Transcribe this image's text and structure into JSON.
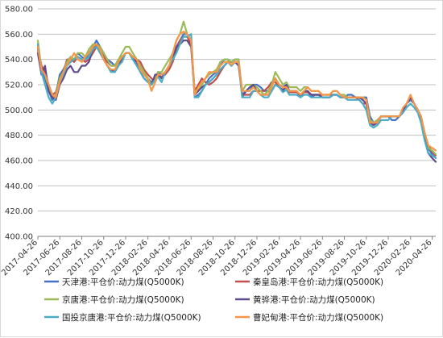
{
  "chart_data": {
    "type": "line",
    "title": "",
    "xlabel": "",
    "ylabel": "",
    "ylim": [
      400,
      580
    ],
    "yticks": [
      "400.00",
      "420.00",
      "440.00",
      "460.00",
      "480.00",
      "500.00",
      "520.00",
      "540.00",
      "560.00",
      "580.00"
    ],
    "xticks": [
      "2017-04-26",
      "2017-06-26",
      "2017-08-26",
      "2017-10-26",
      "2017-12-26",
      "2018-02-26",
      "2018-04-26",
      "2018-06-26",
      "2018-08-26",
      "2018-10-26",
      "2018-12-26",
      "2019-02-26",
      "2019-04-26",
      "2019-06-26",
      "2019-08-26",
      "2019-10-26",
      "2019-12-26",
      "2020-02-26",
      "2020-04-26"
    ],
    "grid": "horizontal",
    "legend_position": "bottom",
    "x": [
      "2017-04-26",
      "2017-05-06",
      "2017-05-16",
      "2017-05-26",
      "2017-06-05",
      "2017-06-15",
      "2017-06-26",
      "2017-07-06",
      "2017-07-16",
      "2017-07-26",
      "2017-08-05",
      "2017-08-15",
      "2017-08-26",
      "2017-09-05",
      "2017-09-15",
      "2017-09-26",
      "2017-10-06",
      "2017-10-16",
      "2017-10-26",
      "2017-11-05",
      "2017-11-15",
      "2017-11-26",
      "2017-12-06",
      "2017-12-16",
      "2017-12-26",
      "2018-01-05",
      "2018-01-15",
      "2018-01-26",
      "2018-02-05",
      "2018-02-15",
      "2018-02-26",
      "2018-03-08",
      "2018-03-18",
      "2018-03-26",
      "2018-04-05",
      "2018-04-15",
      "2018-04-26",
      "2018-05-06",
      "2018-05-16",
      "2018-05-26",
      "2018-06-05",
      "2018-06-15",
      "2018-06-26",
      "2018-07-06",
      "2018-07-16",
      "2018-07-26",
      "2018-08-05",
      "2018-08-15",
      "2018-08-26",
      "2018-09-05",
      "2018-09-15",
      "2018-09-26",
      "2018-10-06",
      "2018-10-16",
      "2018-10-26",
      "2018-11-05",
      "2018-11-15",
      "2018-11-26",
      "2018-12-06",
      "2018-12-16",
      "2018-12-26",
      "2019-01-05",
      "2019-01-15",
      "2019-01-26",
      "2019-02-05",
      "2019-02-15",
      "2019-02-26",
      "2019-03-08",
      "2019-03-18",
      "2019-03-26",
      "2019-04-05",
      "2019-04-15",
      "2019-04-26",
      "2019-05-06",
      "2019-05-16",
      "2019-05-26",
      "2019-06-05",
      "2019-06-15",
      "2019-06-26",
      "2019-07-06",
      "2019-07-16",
      "2019-07-26",
      "2019-08-05",
      "2019-08-15",
      "2019-08-26",
      "2019-09-05",
      "2019-09-15",
      "2019-09-26",
      "2019-10-06",
      "2019-10-16",
      "2019-10-26",
      "2019-11-05",
      "2019-11-15",
      "2019-11-26",
      "2019-12-06",
      "2019-12-16",
      "2019-12-26",
      "2020-01-05",
      "2020-01-15",
      "2020-01-26",
      "2020-02-05",
      "2020-02-15",
      "2020-02-26",
      "2020-03-07",
      "2020-03-17",
      "2020-03-26",
      "2020-04-05",
      "2020-04-15",
      "2020-04-26",
      "2020-05-06"
    ],
    "series": [
      {
        "name": "天津港:平仓价:动力煤(Q5000K)",
        "color": "#4472C4",
        "values": [
          548,
          530,
          525,
          515,
          508,
          512,
          528,
          532,
          538,
          542,
          540,
          545,
          542,
          540,
          545,
          550,
          555,
          550,
          545,
          540,
          538,
          535,
          540,
          542,
          545,
          545,
          540,
          538,
          535,
          530,
          525,
          522,
          525,
          530,
          528,
          530,
          535,
          540,
          550,
          555,
          560,
          560,
          555,
          510,
          512,
          515,
          520,
          525,
          528,
          530,
          535,
          540,
          540,
          538,
          540,
          540,
          510,
          515,
          515,
          520,
          520,
          518,
          515,
          515,
          520,
          525,
          520,
          518,
          520,
          515,
          515,
          515,
          510,
          515,
          515,
          510,
          512,
          512,
          510,
          510,
          510,
          512,
          512,
          510,
          510,
          512,
          512,
          510,
          510,
          510,
          510,
          495,
          490,
          492,
          495,
          495,
          495,
          492,
          492,
          495,
          498,
          505,
          508,
          505,
          500,
          495,
          480,
          470,
          465,
          462
        ]
      },
      {
        "name": "秦皇岛港:平仓价:动力煤(Q5000K)",
        "color": "#C0504D",
        "values": [
          550,
          535,
          530,
          520,
          512,
          514,
          525,
          530,
          540,
          540,
          538,
          542,
          540,
          538,
          540,
          545,
          550,
          548,
          542,
          538,
          535,
          535,
          538,
          540,
          545,
          545,
          542,
          540,
          538,
          532,
          528,
          525,
          522,
          528,
          526,
          528,
          532,
          538,
          548,
          555,
          558,
          558,
          552,
          515,
          520,
          525,
          522,
          520,
          522,
          525,
          530,
          535,
          538,
          538,
          540,
          540,
          512,
          512,
          512,
          515,
          515,
          515,
          515,
          518,
          522,
          522,
          518,
          516,
          518,
          514,
          514,
          514,
          512,
          514,
          514,
          512,
          512,
          512,
          512,
          512,
          512,
          512,
          512,
          510,
          510,
          510,
          510,
          510,
          508,
          505,
          505,
          490,
          488,
          490,
          495,
          495,
          495,
          495,
          495,
          495,
          500,
          505,
          510,
          505,
          500,
          495,
          482,
          472,
          467,
          464
        ]
      },
      {
        "name": "京唐港:平仓价:动力煤(Q5000K)",
        "color": "#9BBB59",
        "values": [
          555,
          532,
          528,
          518,
          510,
          512,
          525,
          530,
          538,
          542,
          540,
          545,
          545,
          542,
          548,
          552,
          552,
          550,
          545,
          540,
          535,
          535,
          540,
          545,
          550,
          550,
          545,
          540,
          535,
          530,
          525,
          520,
          525,
          530,
          530,
          535,
          540,
          545,
          555,
          560,
          570,
          560,
          555,
          515,
          515,
          520,
          525,
          528,
          530,
          532,
          538,
          540,
          540,
          538,
          540,
          540,
          515,
          520,
          520,
          520,
          518,
          515,
          512,
          515,
          520,
          530,
          525,
          520,
          522,
          518,
          518,
          518,
          515,
          518,
          518,
          515,
          515,
          515,
          512,
          512,
          512,
          515,
          515,
          512,
          512,
          510,
          510,
          510,
          510,
          510,
          508,
          492,
          490,
          492,
          495,
          495,
          495,
          495,
          495,
          495,
          500,
          505,
          510,
          505,
          500,
          492,
          480,
          470,
          468,
          465
        ]
      },
      {
        "name": "黄骅港:平仓价:动力煤(Q5000K)",
        "color": "#5E4A8C",
        "values": [
          545,
          528,
          535,
          515,
          510,
          508,
          520,
          525,
          532,
          535,
          530,
          530,
          535,
          535,
          538,
          548,
          552,
          548,
          540,
          535,
          532,
          530,
          535,
          540,
          545,
          545,
          542,
          538,
          530,
          525,
          522,
          520,
          528,
          528,
          525,
          530,
          535,
          540,
          550,
          552,
          555,
          555,
          550,
          512,
          515,
          518,
          520,
          522,
          525,
          528,
          532,
          535,
          538,
          535,
          538,
          535,
          512,
          515,
          518,
          520,
          515,
          512,
          512,
          512,
          515,
          520,
          518,
          515,
          520,
          515,
          515,
          515,
          512,
          515,
          515,
          512,
          512,
          512,
          510,
          510,
          510,
          512,
          512,
          510,
          510,
          510,
          510,
          510,
          510,
          508,
          505,
          490,
          488,
          490,
          495,
          495,
          495,
          495,
          495,
          495,
          500,
          505,
          510,
          505,
          500,
          492,
          478,
          466,
          462,
          459
        ]
      },
      {
        "name": "国投京唐港:平仓价:动力煤(Q5000K)",
        "color": "#4BACC6",
        "values": [
          552,
          530,
          520,
          510,
          505,
          510,
          522,
          528,
          535,
          538,
          540,
          542,
          540,
          540,
          542,
          548,
          550,
          545,
          540,
          535,
          530,
          530,
          535,
          538,
          545,
          545,
          540,
          535,
          530,
          525,
          522,
          520,
          524,
          526,
          522,
          530,
          535,
          540,
          545,
          552,
          558,
          558,
          560,
          510,
          510,
          515,
          520,
          522,
          525,
          528,
          532,
          535,
          538,
          535,
          538,
          538,
          510,
          510,
          510,
          515,
          515,
          512,
          510,
          510,
          515,
          520,
          518,
          514,
          516,
          512,
          512,
          512,
          510,
          512,
          512,
          510,
          510,
          510,
          510,
          510,
          510,
          512,
          512,
          510,
          510,
          508,
          508,
          508,
          508,
          505,
          500,
          488,
          486,
          488,
          492,
          492,
          492,
          495,
          495,
          495,
          498,
          502,
          505,
          502,
          498,
          490,
          476,
          466,
          464,
          462
        ]
      },
      {
        "name": "曹妃甸港:平仓价:动力煤(Q5000K)",
        "color": "#F79646",
        "values": [
          550,
          532,
          528,
          520,
          512,
          510,
          522,
          530,
          536,
          540,
          545,
          540,
          538,
          542,
          545,
          550,
          552,
          548,
          540,
          535,
          532,
          532,
          538,
          542,
          545,
          545,
          542,
          540,
          532,
          528,
          524,
          515,
          522,
          528,
          528,
          530,
          535,
          545,
          555,
          560,
          562,
          560,
          555,
          512,
          518,
          522,
          525,
          530,
          530,
          530,
          535,
          538,
          538,
          536,
          538,
          538,
          515,
          515,
          515,
          518,
          515,
          512,
          512,
          512,
          518,
          525,
          520,
          518,
          518,
          515,
          515,
          515,
          512,
          515,
          518,
          515,
          515,
          515,
          512,
          512,
          512,
          515,
          515,
          512,
          510,
          510,
          510,
          510,
          510,
          510,
          508,
          490,
          490,
          490,
          495,
          495,
          495,
          495,
          495,
          495,
          502,
          505,
          512,
          505,
          500,
          495,
          482,
          472,
          470,
          468
        ]
      }
    ]
  }
}
